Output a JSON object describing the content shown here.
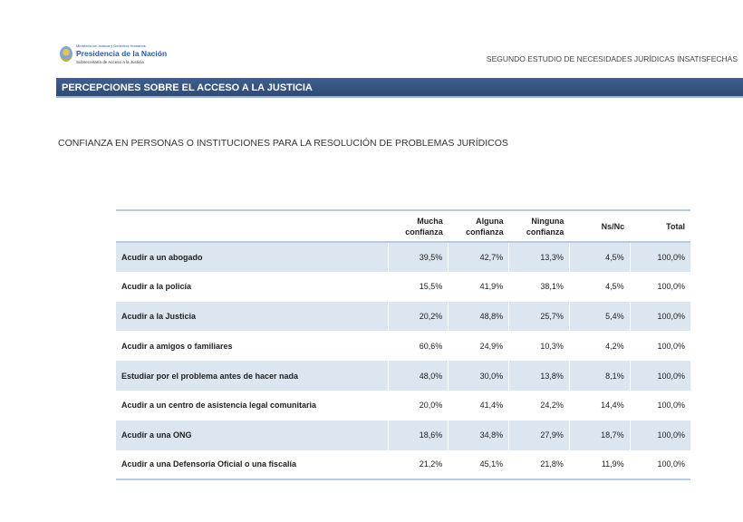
{
  "header": {
    "ministry": "Ministerio de Justicia y Derechos Humanos",
    "presidency": "Presidencia de la Nación",
    "subsecretary": "Subsecretaría de Acceso a la Justicia",
    "study_title": "SEGUNDO ESTUDIO DE NECESIDADES JURÍDICAS INSATISFECHAS"
  },
  "banner": "PERCEPCIONES SOBRE EL ACCESO A LA JUSTICIA",
  "subtitle": "CONFIANZA EN PERSONAS O INSTITUCIONES PARA LA RESOLUCIÓN DE PROBLEMAS JURÍDICOS",
  "table": {
    "columns": [
      [
        "Mucha",
        "confianza"
      ],
      [
        "Alguna",
        "confianza"
      ],
      [
        "Ninguna",
        "confianza"
      ],
      [
        "Ns/Nc",
        ""
      ],
      [
        "Total",
        ""
      ]
    ],
    "rows": [
      {
        "label": "Acudir a un abogado",
        "values": [
          "39,5%",
          "42,7%",
          "13,3%",
          "4,5%",
          "100,0%"
        ]
      },
      {
        "label": "Acudir a la policía",
        "values": [
          "15,5%",
          "41,9%",
          "38,1%",
          "4,5%",
          "100,0%"
        ]
      },
      {
        "label": "Acudir a la Justicia",
        "values": [
          "20,2%",
          "48,8%",
          "25,7%",
          "5,4%",
          "100,0%"
        ]
      },
      {
        "label": "Acudir a amigos o familiares",
        "values": [
          "60,6%",
          "24,9%",
          "10,3%",
          "4,2%",
          "100,0%"
        ]
      },
      {
        "label": "Estudiar por el problema antes de hacer nada",
        "values": [
          "48,0%",
          "30,0%",
          "13,8%",
          "8,1%",
          "100,0%"
        ]
      },
      {
        "label": "Acudir a un centro de asistencia legal comunitaria",
        "values": [
          "20,0%",
          "41,4%",
          "24,2%",
          "14,4%",
          "100,0%"
        ]
      },
      {
        "label": "Acudir a una ONG",
        "values": [
          "18,6%",
          "34,8%",
          "27,9%",
          "18,7%",
          "100,0%"
        ]
      },
      {
        "label": "Acudir a una Defensoría Oficial o una fiscalía",
        "values": [
          "21,2%",
          "45,1%",
          "21,8%",
          "11,9%",
          "100,0%"
        ]
      }
    ]
  },
  "colors": {
    "banner": "#2f4b78",
    "row_shade": "#dce6f1",
    "rule": "#b7cbe2"
  }
}
